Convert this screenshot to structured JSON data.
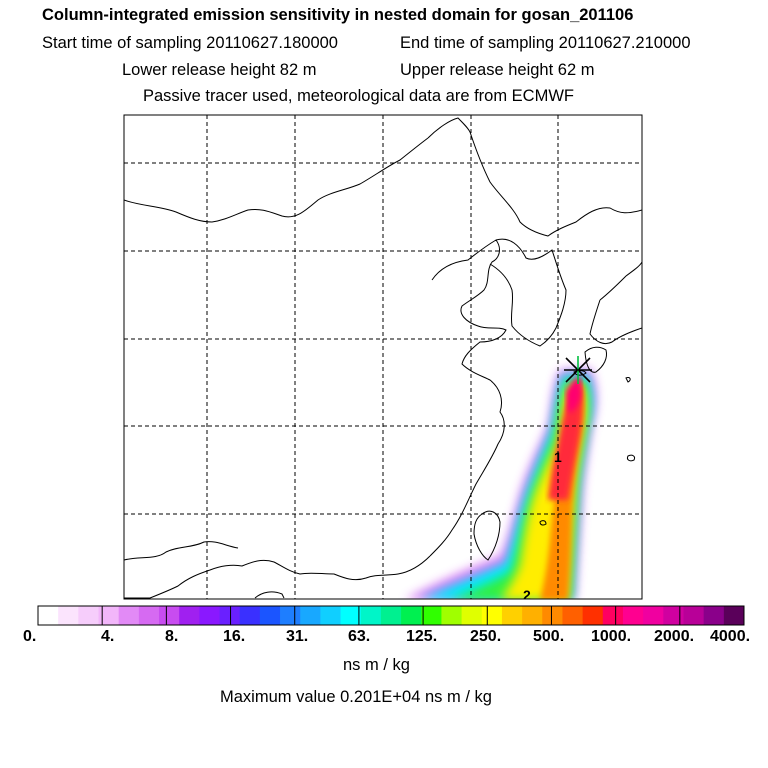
{
  "header": {
    "title": "Column-integrated emission sensitivity in nested domain for gosan_201106",
    "start_label": "Start time of sampling 20110627.180000",
    "end_label": "End time of sampling 20110627.210000",
    "lower_label": "Lower release height   82 m",
    "upper_label": "Upper release height   62 m",
    "tracer_note": "Passive tracer used, meteorological data are from ECMWF"
  },
  "map": {
    "release_site_marker": "asterisk-icon",
    "plume_labels": [
      "1",
      "2"
    ]
  },
  "colorbar": {
    "colors": [
      "#ffffff",
      "#fbe4fd",
      "#f6cdfb",
      "#f2b6fa",
      "#e28af6",
      "#d66af2",
      "#c84cf0",
      "#a020f0",
      "#8a18ff",
      "#6a20ff",
      "#3a30ff",
      "#1b55ff",
      "#1e7eff",
      "#18a8ff",
      "#10cfff",
      "#00ffff",
      "#00f5c8",
      "#00f090",
      "#00f050",
      "#30ff00",
      "#a0ff00",
      "#e0ff00",
      "#ffff00",
      "#ffd000",
      "#ffb000",
      "#ff8a00",
      "#ff6000",
      "#ff3000",
      "#ff0060",
      "#ff0090",
      "#f000a0",
      "#d000a0",
      "#b80098",
      "#8a008a",
      "#5a005a"
    ],
    "tick_labels": [
      "0.",
      "4.",
      "8.",
      "16.",
      "31.",
      "63.",
      "125.",
      "250.",
      "500.",
      "1000.",
      "2000.",
      "4000."
    ],
    "units": "ns m / kg",
    "max_value_text": "Maximum value  0.201E+04 ns m / kg"
  }
}
